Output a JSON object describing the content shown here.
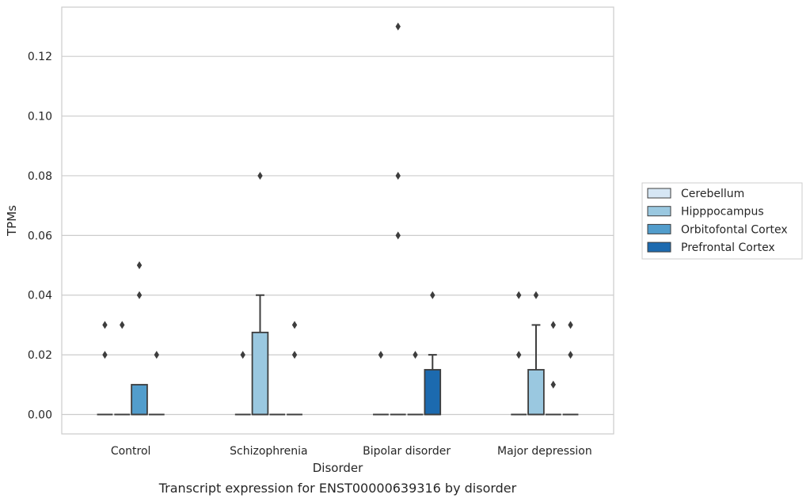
{
  "chart_data": {
    "type": "box",
    "title": "",
    "caption": "Transcript expression for ENST00000639316 by disorder",
    "xlabel": "Disorder",
    "ylabel": "TPMs",
    "ylim": [
      -0.0065,
      0.1365
    ],
    "yticks": [
      0.0,
      0.02,
      0.04,
      0.06,
      0.08,
      0.1,
      0.12
    ],
    "ytick_labels": [
      "0.00",
      "0.02",
      "0.04",
      "0.06",
      "0.08",
      "0.10",
      "0.12"
    ],
    "grid": "horizontal",
    "legend_position": "right",
    "categories": [
      "Control",
      "Schizophrenia",
      "Bipolar disorder",
      "Major depression"
    ],
    "series": [
      {
        "name": "Cerebellum",
        "color": "#d6e6f4",
        "boxes": [
          {
            "q1": 0,
            "median": 0,
            "q3": 0,
            "whisker_low": 0,
            "whisker_high": 0,
            "outliers": [
              0.02,
              0.03
            ]
          },
          {
            "q1": 0,
            "median": 0,
            "q3": 0,
            "whisker_low": 0,
            "whisker_high": 0,
            "outliers": [
              0.02
            ]
          },
          {
            "q1": 0,
            "median": 0,
            "q3": 0,
            "whisker_low": 0,
            "whisker_high": 0,
            "outliers": [
              0.02
            ]
          },
          {
            "q1": 0,
            "median": 0,
            "q3": 0,
            "whisker_low": 0,
            "whisker_high": 0,
            "outliers": [
              0.02,
              0.04
            ]
          }
        ]
      },
      {
        "name": "Hipppocampus",
        "color": "#9ac8e0",
        "boxes": [
          {
            "q1": 0,
            "median": 0,
            "q3": 0,
            "whisker_low": 0,
            "whisker_high": 0,
            "outliers": [
              0.03
            ]
          },
          {
            "q1": 0,
            "median": 0,
            "q3": 0.0275,
            "whisker_low": 0,
            "whisker_high": 0.04,
            "outliers": [
              0.08
            ]
          },
          {
            "q1": 0,
            "median": 0,
            "q3": 0,
            "whisker_low": 0,
            "whisker_high": 0,
            "outliers": [
              0.06,
              0.08,
              0.13
            ]
          },
          {
            "q1": 0,
            "median": 0,
            "q3": 0.015,
            "whisker_low": 0,
            "whisker_high": 0.03,
            "outliers": [
              0.04
            ]
          }
        ]
      },
      {
        "name": "Orbitofontal Cortex",
        "color": "#529dcc",
        "boxes": [
          {
            "q1": 0,
            "median": 0,
            "q3": 0.01,
            "whisker_low": 0,
            "whisker_high": 0.01,
            "outliers": [
              0.04,
              0.05
            ]
          },
          {
            "q1": 0,
            "median": 0,
            "q3": 0,
            "whisker_low": 0,
            "whisker_high": 0,
            "outliers": []
          },
          {
            "q1": 0,
            "median": 0,
            "q3": 0,
            "whisker_low": 0,
            "whisker_high": 0,
            "outliers": [
              0.02
            ]
          },
          {
            "q1": 0,
            "median": 0,
            "q3": 0,
            "whisker_low": 0,
            "whisker_high": 0,
            "outliers": [
              0.01,
              0.03
            ]
          }
        ]
      },
      {
        "name": "Prefrontal Cortex",
        "color": "#1c6aaf",
        "boxes": [
          {
            "q1": 0,
            "median": 0,
            "q3": 0,
            "whisker_low": 0,
            "whisker_high": 0,
            "outliers": [
              0.02
            ]
          },
          {
            "q1": 0,
            "median": 0,
            "q3": 0,
            "whisker_low": 0,
            "whisker_high": 0,
            "outliers": [
              0.02,
              0.03
            ]
          },
          {
            "q1": 0,
            "median": 0,
            "q3": 0.015,
            "whisker_low": 0,
            "whisker_high": 0.02,
            "outliers": [
              0.04
            ]
          },
          {
            "q1": 0,
            "median": 0,
            "q3": 0,
            "whisker_low": 0,
            "whisker_high": 0,
            "outliers": [
              0.02,
              0.03
            ]
          }
        ]
      }
    ]
  }
}
